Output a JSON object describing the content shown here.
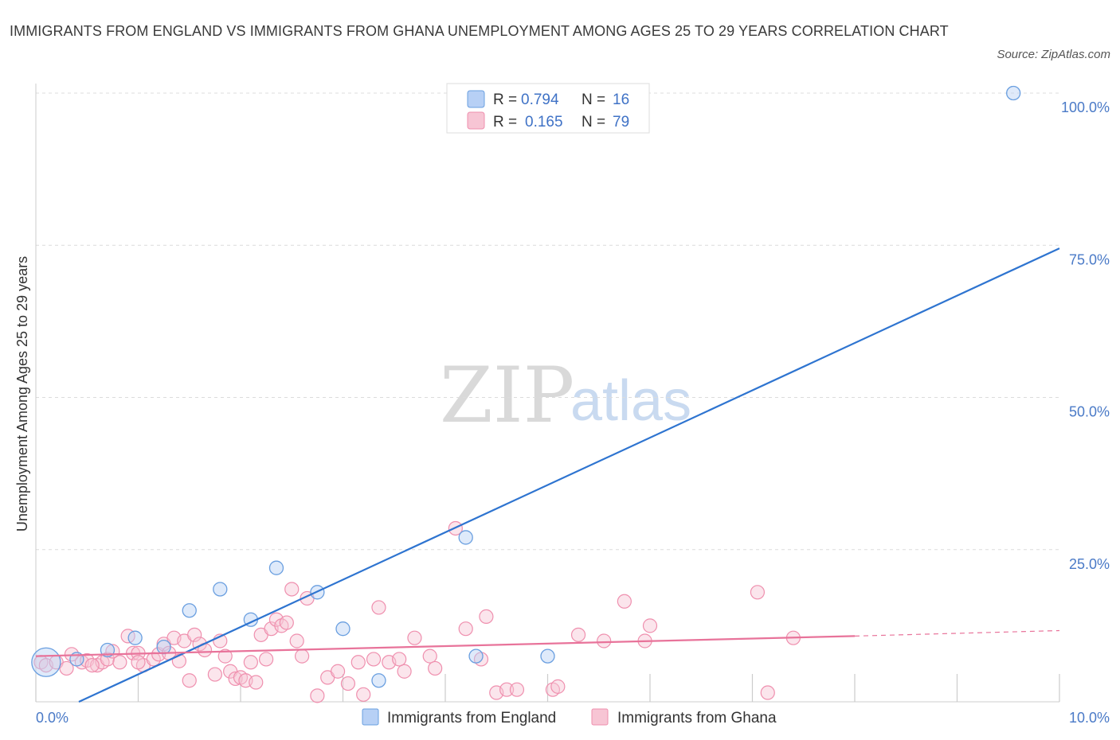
{
  "title": "IMMIGRANTS FROM ENGLAND VS IMMIGRANTS FROM GHANA UNEMPLOYMENT AMONG AGES 25 TO 29 YEARS CORRELATION CHART",
  "source": "Source: ZipAtlas.com",
  "watermark": {
    "zip": "ZIP",
    "atlas": "atlas"
  },
  "colors": {
    "england": "#6a9fe0",
    "england_fill": "#b7d0f5",
    "ghana": "#ef8fae",
    "ghana_fill": "#f7c5d4",
    "england_line": "#2e74d0",
    "ghana_line": "#e8739a",
    "tick": "#4a7ac7"
  },
  "legend": {
    "england": {
      "r_label": "R =",
      "r_value": "0.794",
      "n_label": "N =",
      "n_value": "16"
    },
    "ghana": {
      "r_label": "R =",
      "r_value": "0.165",
      "n_label": "N =",
      "n_value": "79"
    }
  },
  "chart_data": {
    "type": "scatter",
    "title": "IMMIGRANTS FROM ENGLAND VS IMMIGRANTS FROM GHANA UNEMPLOYMENT AMONG AGES 25 TO 29 YEARS CORRELATION CHART",
    "xlabel": "",
    "ylabel": "Unemployment Among Ages 25 to 29 years",
    "xlim": [
      0,
      10
    ],
    "ylim": [
      0,
      100
    ],
    "x_tick_labels": [
      "0.0%",
      "10.0%"
    ],
    "y_tick_labels": [
      "25.0%",
      "50.0%",
      "75.0%",
      "100.0%"
    ],
    "y_ticks": [
      25,
      50,
      75,
      100
    ],
    "series": [
      {
        "name": "Immigrants from England",
        "points": [
          [
            0.1,
            6.5
          ],
          [
            0.4,
            7.0
          ],
          [
            0.7,
            8.5
          ],
          [
            0.97,
            10.5
          ],
          [
            1.25,
            9.0
          ],
          [
            1.5,
            15.0
          ],
          [
            1.8,
            18.5
          ],
          [
            2.1,
            13.5
          ],
          [
            2.35,
            22.0
          ],
          [
            2.75,
            18.0
          ],
          [
            3.0,
            12.0
          ],
          [
            3.35,
            3.5
          ],
          [
            4.2,
            27.0
          ],
          [
            4.3,
            7.5
          ],
          [
            5.0,
            7.5
          ],
          [
            9.55,
            100.0
          ]
        ],
        "big_point": [
          0.1,
          6.5
        ],
        "trend": {
          "x0": 0.42,
          "y0": 0.0,
          "x1": 10.0,
          "y1": 74.5
        }
      },
      {
        "name": "Immigrants from Ghana",
        "points": [
          [
            0.05,
            6.5
          ],
          [
            0.1,
            6.0
          ],
          [
            0.2,
            6.5
          ],
          [
            0.3,
            5.5
          ],
          [
            0.35,
            7.8
          ],
          [
            0.45,
            6.5
          ],
          [
            0.5,
            6.8
          ],
          [
            0.6,
            6.0
          ],
          [
            0.65,
            6.5
          ],
          [
            0.7,
            7.0
          ],
          [
            0.75,
            8.3
          ],
          [
            0.82,
            6.5
          ],
          [
            0.9,
            10.8
          ],
          [
            0.95,
            8.0
          ],
          [
            1.0,
            8.0
          ],
          [
            1.05,
            6.0
          ],
          [
            1.15,
            7.0
          ],
          [
            1.2,
            7.8
          ],
          [
            1.25,
            9.5
          ],
          [
            1.3,
            8.0
          ],
          [
            1.35,
            10.5
          ],
          [
            1.4,
            6.7
          ],
          [
            1.45,
            10.0
          ],
          [
            1.5,
            3.5
          ],
          [
            1.55,
            11.0
          ],
          [
            1.6,
            9.5
          ],
          [
            1.65,
            8.5
          ],
          [
            1.75,
            4.5
          ],
          [
            1.8,
            10.0
          ],
          [
            1.85,
            7.5
          ],
          [
            1.9,
            5.0
          ],
          [
            1.95,
            3.8
          ],
          [
            2.0,
            4.0
          ],
          [
            2.05,
            3.5
          ],
          [
            2.1,
            6.5
          ],
          [
            2.15,
            3.2
          ],
          [
            2.2,
            11.0
          ],
          [
            2.3,
            12.0
          ],
          [
            2.35,
            13.5
          ],
          [
            2.4,
            12.5
          ],
          [
            2.45,
            13.0
          ],
          [
            2.5,
            18.5
          ],
          [
            2.55,
            10.0
          ],
          [
            2.6,
            7.5
          ],
          [
            2.65,
            17.0
          ],
          [
            2.75,
            1.0
          ],
          [
            2.85,
            4.0
          ],
          [
            2.95,
            5.0
          ],
          [
            3.05,
            3.0
          ],
          [
            3.15,
            6.5
          ],
          [
            3.2,
            1.2
          ],
          [
            3.3,
            7.0
          ],
          [
            3.35,
            15.5
          ],
          [
            3.45,
            6.5
          ],
          [
            3.6,
            5.0
          ],
          [
            3.7,
            10.5
          ],
          [
            3.85,
            7.5
          ],
          [
            3.9,
            5.5
          ],
          [
            4.1,
            28.5
          ],
          [
            4.2,
            12.0
          ],
          [
            4.35,
            7.0
          ],
          [
            4.4,
            14.0
          ],
          [
            4.5,
            1.5
          ],
          [
            4.6,
            2.0
          ],
          [
            4.7,
            2.0
          ],
          [
            5.05,
            2.0
          ],
          [
            5.1,
            2.5
          ],
          [
            5.3,
            11.0
          ],
          [
            5.55,
            10.0
          ],
          [
            5.75,
            16.5
          ],
          [
            5.95,
            10.0
          ],
          [
            6.0,
            12.5
          ],
          [
            7.05,
            18.0
          ],
          [
            7.15,
            1.5
          ],
          [
            7.4,
            10.5
          ],
          [
            0.55,
            6.0
          ],
          [
            1.0,
            6.5
          ],
          [
            2.25,
            7.0
          ],
          [
            3.55,
            7.0
          ]
        ],
        "trend": {
          "x0": 0.0,
          "y0": 7.5,
          "x1": 8.0,
          "y1": 10.8
        },
        "trend_dashed": {
          "x0": 8.0,
          "y0": 10.8,
          "x1": 10.0,
          "y1": 11.7
        }
      }
    ],
    "legend_position": "top-center",
    "grid": true
  }
}
